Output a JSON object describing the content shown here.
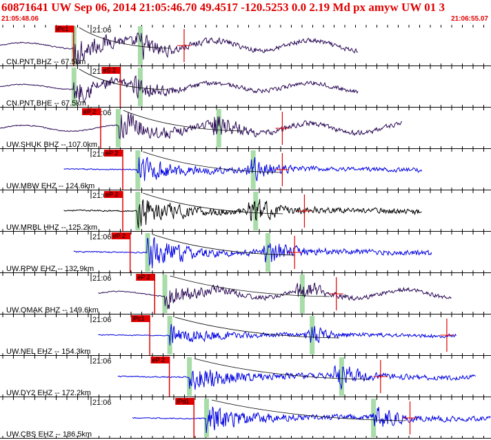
{
  "header": {
    "title": "60871641 UW Sep 06, 2014 21:05:46.70   49.4517 -120.5253  0.0 2.19 Md px amyw UW 01   3",
    "start_time": "21:05:48.06",
    "end_time": "21:06:55.07"
  },
  "colors": {
    "title": "#e00000",
    "pick_marker": "#e00000",
    "phase_window": "#a8dca8",
    "trace_purple": "#2a0a55",
    "trace_blue": "#0000e0",
    "trace_black": "#000000",
    "theoretical_curve": "#000000"
  },
  "panels": [
    {
      "label": "CN.PNT BHZ -- 67.5km",
      "time_label": "21:06",
      "pick_label": "iPc1",
      "trace_color": "purple",
      "amp": 0.55,
      "trace_start": 0.0,
      "trace_end": 0.73,
      "onset": 0.15,
      "s_arrival": 0.29,
      "pick": 0.15,
      "red_tick": 0.375,
      "green": [
        0.15,
        0.285
      ]
    },
    {
      "label": "CN.PNT BHE -- 67.5km",
      "time_label": "21:06",
      "pick_label": "eS 2",
      "trace_color": "purple",
      "amp": 0.45,
      "trace_start": 0.0,
      "trace_end": 0.73,
      "onset": 0.15,
      "s_arrival": 0.285,
      "pick": 0.245,
      "red_tick": null,
      "green": [
        0.15,
        0.285
      ]
    },
    {
      "label": "UW.SHUK BHZ -- 107.0km",
      "time_label": "21:06",
      "pick_label": "eP 2",
      "trace_color": "purple",
      "amp": 0.55,
      "trace_start": 0.0,
      "trace_end": 0.82,
      "onset": 0.24,
      "s_arrival": 0.44,
      "pick": 0.205,
      "red_tick": 0.575,
      "green": [
        0.24,
        0.445
      ]
    },
    {
      "label": "UW.MBW EHZ -- 124.6km",
      "time_label": "21:06",
      "pick_label": "eP 2",
      "trace_color": "blue",
      "amp": 0.5,
      "trace_start": 0.13,
      "trace_end": 0.86,
      "onset": 0.28,
      "s_arrival": 0.515,
      "pick": 0.25,
      "red_tick": 0.575,
      "green": [
        0.28,
        0.515
      ]
    },
    {
      "label": "UW.MRBL HHZ -- 125.2km",
      "time_label": "21:06",
      "pick_label": "eP 2",
      "trace_color": "black",
      "amp": 0.6,
      "trace_start": 0.13,
      "trace_end": 0.86,
      "onset": 0.28,
      "s_arrival": 0.52,
      "pick": 0.25,
      "red_tick": 0.62,
      "green": [
        0.28,
        0.52
      ]
    },
    {
      "label": "UW.RPW EHZ -- 132.9km",
      "time_label": "21:06",
      "pick_label": "eP 2",
      "trace_color": "blue",
      "amp": 0.6,
      "trace_start": 0.15,
      "trace_end": 0.88,
      "onset": 0.3,
      "s_arrival": 0.545,
      "pick": 0.265,
      "red_tick": 0.6,
      "green": [
        0.3,
        0.545
      ]
    },
    {
      "label": "UW.OMAK BHZ -- 149.6km",
      "time_label": "21:06",
      "pick_label": "eP 2",
      "trace_color": "purple",
      "amp": 0.45,
      "trace_start": 0.2,
      "trace_end": 0.92,
      "onset": 0.335,
      "s_arrival": 0.615,
      "pick": 0.315,
      "red_tick": 0.685,
      "green": [
        0.335,
        0.615
      ]
    },
    {
      "label": "UW.NEL EHZ -- 154.3km",
      "time_label": "21:06",
      "pick_label": "iPc1",
      "trace_color": "blue",
      "amp": 0.4,
      "trace_start": 0.2,
      "trace_end": 0.93,
      "onset": 0.345,
      "s_arrival": 0.635,
      "pick": 0.305,
      "red_tick": 0.91,
      "green": [
        0.345,
        0.635
      ]
    },
    {
      "label": "UW.DY2 EHZ -- 172.2km",
      "time_label": "21:06",
      "pick_label": "eP 2",
      "trace_color": "blue",
      "amp": 0.55,
      "trace_start": 0.24,
      "trace_end": 0.97,
      "onset": 0.385,
      "s_arrival": 0.695,
      "pick": 0.345,
      "red_tick": 0.775,
      "green": [
        0.385,
        0.695
      ]
    },
    {
      "label": "UW.CBS EHZ -- 186.5km",
      "time_label": "21:06",
      "pick_label": "iPd1",
      "trace_color": "blue",
      "amp": 0.55,
      "trace_start": 0.27,
      "trace_end": 1.0,
      "onset": 0.42,
      "s_arrival": 0.77,
      "pick": 0.395,
      "red_tick": 0.835,
      "green": [
        0.42,
        0.76
      ]
    }
  ]
}
